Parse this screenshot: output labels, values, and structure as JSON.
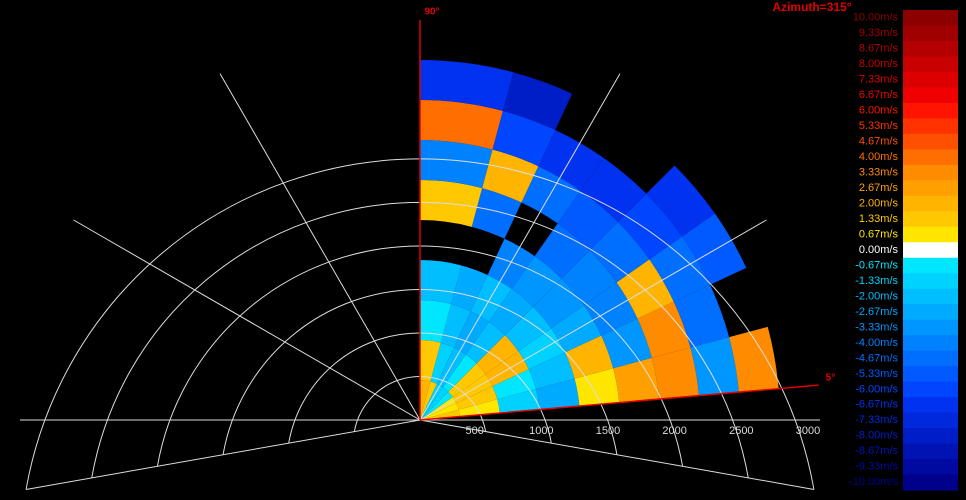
{
  "chart_data": {
    "type": "polar-heatmap",
    "title": "Azimuth=315°",
    "angle_labels": [
      {
        "value": 90,
        "label": "90°"
      },
      {
        "value": 5,
        "label": "5°"
      }
    ],
    "rlim": [
      0,
      3000
    ],
    "rticks": [
      500,
      1000,
      1500,
      2000,
      2500,
      3000
    ],
    "theta_bins": [
      5,
      15,
      25,
      35,
      45,
      55,
      65,
      75,
      90
    ],
    "range_bins": [
      0,
      300,
      600,
      900,
      1200,
      1500,
      1800,
      2100,
      2400,
      2700,
      3000
    ],
    "values": [
      [
        1.33,
        0.67,
        -1.33,
        -2.67,
        0.67,
        2.67,
        3.33,
        -3.33,
        3.33,
        null
      ],
      [
        0.67,
        1.33,
        -0.67,
        -2.0,
        2.0,
        -3.33,
        3.33,
        -4.67,
        null,
        null
      ],
      [
        0.67,
        1.33,
        2.0,
        -1.33,
        -2.67,
        -4.0,
        2.0,
        -4.67,
        -5.33,
        null
      ],
      [
        -0.67,
        1.33,
        2.0,
        -2.0,
        -3.33,
        -4.0,
        -4.67,
        -6.0,
        -6.67,
        null
      ],
      [
        -1.33,
        -0.67,
        -2.0,
        -2.67,
        -3.33,
        -4.67,
        -5.33,
        -6.67,
        null,
        null
      ],
      [
        -1.33,
        -2.0,
        -2.67,
        -2.0,
        -4.0,
        null,
        -4.67,
        -6.67,
        null,
        null
      ],
      [
        1.33,
        -1.33,
        -2.0,
        -2.67,
        null,
        -4.67,
        2.0,
        -6.0,
        -8.0,
        null
      ],
      [
        2.0,
        1.33,
        -0.67,
        -2.0,
        null,
        1.33,
        -4.0,
        4.0,
        -6.67,
        null
      ]
    ],
    "colorbar": {
      "ticks": [
        {
          "value": 10.0,
          "label": "10.00m/s"
        },
        {
          "value": 9.33,
          "label": "9.33m/s"
        },
        {
          "value": 8.67,
          "label": "8.67m/s"
        },
        {
          "value": 8.0,
          "label": "8.00m/s"
        },
        {
          "value": 7.33,
          "label": "7.33m/s"
        },
        {
          "value": 6.67,
          "label": "6.67m/s"
        },
        {
          "value": 6.0,
          "label": "6.00m/s"
        },
        {
          "value": 5.33,
          "label": "5.33m/s"
        },
        {
          "value": 4.67,
          "label": "4.67m/s"
        },
        {
          "value": 4.0,
          "label": "4.00m/s"
        },
        {
          "value": 3.33,
          "label": "3.33m/s"
        },
        {
          "value": 2.67,
          "label": "2.67m/s"
        },
        {
          "value": 2.0,
          "label": "2.00m/s"
        },
        {
          "value": 1.33,
          "label": "1.33m/s"
        },
        {
          "value": 0.67,
          "label": "0.67m/s"
        },
        {
          "value": 0.0,
          "label": "0.00m/s"
        },
        {
          "value": -0.67,
          "label": "-0.67m/s"
        },
        {
          "value": -1.33,
          "label": "-1.33m/s"
        },
        {
          "value": -2.0,
          "label": "-2.00m/s"
        },
        {
          "value": -2.67,
          "label": "-2.67m/s"
        },
        {
          "value": -3.33,
          "label": "-3.33m/s"
        },
        {
          "value": -4.0,
          "label": "-4.00m/s"
        },
        {
          "value": -4.67,
          "label": "-4.67m/s"
        },
        {
          "value": -5.33,
          "label": "-5.33m/s"
        },
        {
          "value": -6.0,
          "label": "-6.00m/s"
        },
        {
          "value": -6.67,
          "label": "-6.67m/s"
        },
        {
          "value": -7.33,
          "label": "-7.33m/s"
        },
        {
          "value": -8.0,
          "label": "-8.00m/s"
        },
        {
          "value": -8.67,
          "label": "-8.67m/s"
        },
        {
          "value": -9.33,
          "label": "-9.33m/s"
        },
        {
          "value": -10.0,
          "label": "-10.00m/s"
        }
      ],
      "colors": [
        "#8c0000",
        "#a00000",
        "#b40000",
        "#c80000",
        "#dc0000",
        "#f00000",
        "#ff1400",
        "#ff3200",
        "#ff5000",
        "#ff6e00",
        "#ff8c00",
        "#ffa000",
        "#ffb400",
        "#ffc800",
        "#ffe600",
        "#ffffff",
        "#00e6ff",
        "#00d2ff",
        "#00beff",
        "#00aaff",
        "#0096ff",
        "#0082ff",
        "#006eff",
        "#005aff",
        "#0046ff",
        "#0032f0",
        "#0028dc",
        "#001ec8",
        "#0014b4",
        "#000aa0",
        "#00008c"
      ]
    }
  }
}
